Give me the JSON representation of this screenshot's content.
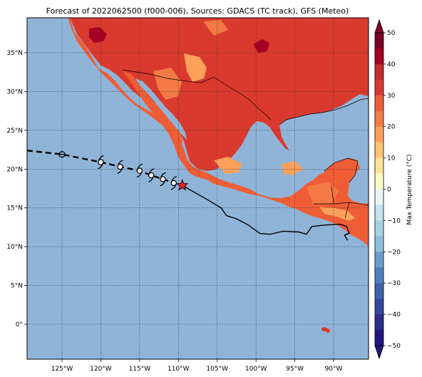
{
  "title": "Forecast of 2022062500 (f000-006), Sources: GDACS (TC track), GFS (Meteo)",
  "map": {
    "lon_range": [
      -129.5,
      -85.5
    ],
    "lat_range": [
      -4.5,
      39.5
    ],
    "lon_ticks": [
      {
        "value": -125,
        "label": "125°W"
      },
      {
        "value": -120,
        "label": "120°W"
      },
      {
        "value": -115,
        "label": "115°W"
      },
      {
        "value": -110,
        "label": "110°W"
      },
      {
        "value": -105,
        "label": "105°W"
      },
      {
        "value": -100,
        "label": "100°W"
      },
      {
        "value": -95,
        "label": "95°W"
      },
      {
        "value": -90,
        "label": "90°W"
      }
    ],
    "lat_ticks": [
      {
        "value": 35,
        "label": "35°N"
      },
      {
        "value": 30,
        "label": "30°N"
      },
      {
        "value": 25,
        "label": "25°N"
      },
      {
        "value": 20,
        "label": "20°N"
      },
      {
        "value": 15,
        "label": "15°N"
      },
      {
        "value": 10,
        "label": "10°N"
      },
      {
        "value": 5,
        "label": "5°N"
      },
      {
        "value": 0,
        "label": "0°"
      }
    ],
    "grid": true,
    "ocean_color": "#8fb4d8"
  },
  "track": {
    "past_forecast_dashed": [
      [
        -129.5,
        22.4
      ],
      [
        -125,
        21.9
      ],
      [
        -120,
        20.9
      ],
      [
        -117.5,
        20.3
      ],
      [
        -115,
        19.8
      ],
      [
        -113.5,
        19.2
      ],
      [
        -112,
        18.7
      ],
      [
        -110.6,
        18.2
      ],
      [
        -109.5,
        17.9
      ]
    ],
    "symbol_points": [
      {
        "lon": -125.0,
        "lat": 21.9,
        "kind": "circle"
      },
      {
        "lon": -120.0,
        "lat": 20.9,
        "kind": "storm"
      },
      {
        "lon": -117.5,
        "lat": 20.3,
        "kind": "storm"
      },
      {
        "lon": -115.0,
        "lat": 19.8,
        "kind": "storm"
      },
      {
        "lon": -113.5,
        "lat": 19.2,
        "kind": "storm"
      },
      {
        "lon": -112.0,
        "lat": 18.7,
        "kind": "storm"
      },
      {
        "lon": -110.6,
        "lat": 18.2,
        "kind": "storm"
      }
    ],
    "current_position": {
      "lon": -109.5,
      "lat": 17.9,
      "marker": "star",
      "color": "#e8231f"
    },
    "cone_line": [
      [
        -109.5,
        17.9
      ],
      [
        -106.5,
        16.2
      ],
      [
        -104.5,
        15.0
      ],
      [
        -103.8,
        14.0
      ],
      [
        -102.5,
        13.6
      ],
      [
        -101,
        12.8
      ],
      [
        -99.5,
        11.7
      ],
      [
        -98.2,
        11.6
      ],
      [
        -96.5,
        12.0
      ],
      [
        -94.5,
        11.9
      ],
      [
        -93.5,
        11.6
      ],
      [
        -92.8,
        12.6
      ],
      [
        -91,
        12.8
      ],
      [
        -89.2,
        12.9
      ],
      [
        -88.3,
        12.6
      ],
      [
        -88.0,
        11.7
      ],
      [
        -88.6,
        11.5
      ],
      [
        -88.2,
        10.8
      ]
    ]
  },
  "colorbar": {
    "label": "Max Temperature (°C)",
    "ticks": [
      "50",
      "40",
      "30",
      "20",
      "10",
      "0",
      "−10",
      "−20",
      "−30",
      "−40",
      "−50"
    ],
    "bands": [
      {
        "from": 45,
        "to": 50,
        "color": "#7d0025"
      },
      {
        "from": 40,
        "to": 45,
        "color": "#a50026"
      },
      {
        "from": 35,
        "to": 40,
        "color": "#c62a2a"
      },
      {
        "from": 30,
        "to": 35,
        "color": "#da3a2e"
      },
      {
        "from": 25,
        "to": 30,
        "color": "#ef5d36"
      },
      {
        "from": 20,
        "to": 25,
        "color": "#f47a45"
      },
      {
        "from": 15,
        "to": 20,
        "color": "#fca05a"
      },
      {
        "from": 10,
        "to": 15,
        "color": "#fdc374"
      },
      {
        "from": 5,
        "to": 10,
        "color": "#fee39a"
      },
      {
        "from": 0,
        "to": 5,
        "color": "#fefcc4"
      },
      {
        "from": -5,
        "to": 0,
        "color": "#e8f6f8"
      },
      {
        "from": -10,
        "to": -5,
        "color": "#c2e4ef"
      },
      {
        "from": -15,
        "to": -10,
        "color": "#a4d0e4"
      },
      {
        "from": -20,
        "to": -15,
        "color": "#8dbedb"
      },
      {
        "from": -25,
        "to": -20,
        "color": "#6c9ecd"
      },
      {
        "from": -30,
        "to": -25,
        "color": "#4f80bd"
      },
      {
        "from": -35,
        "to": -30,
        "color": "#3e63aa"
      },
      {
        "from": -40,
        "to": -35,
        "color": "#33489a"
      },
      {
        "from": -45,
        "to": -40,
        "color": "#2a2d8a"
      },
      {
        "from": -50,
        "to": -45,
        "color": "#221680"
      }
    ],
    "range": [
      -50,
      50
    ]
  },
  "land": {
    "colors": {
      "t30": "#da3a2e",
      "t25": "#ef5d36",
      "t20": "#f47a45",
      "t15": "#fca05a",
      "t40": "#a50026",
      "t45": "#7d0025"
    }
  }
}
